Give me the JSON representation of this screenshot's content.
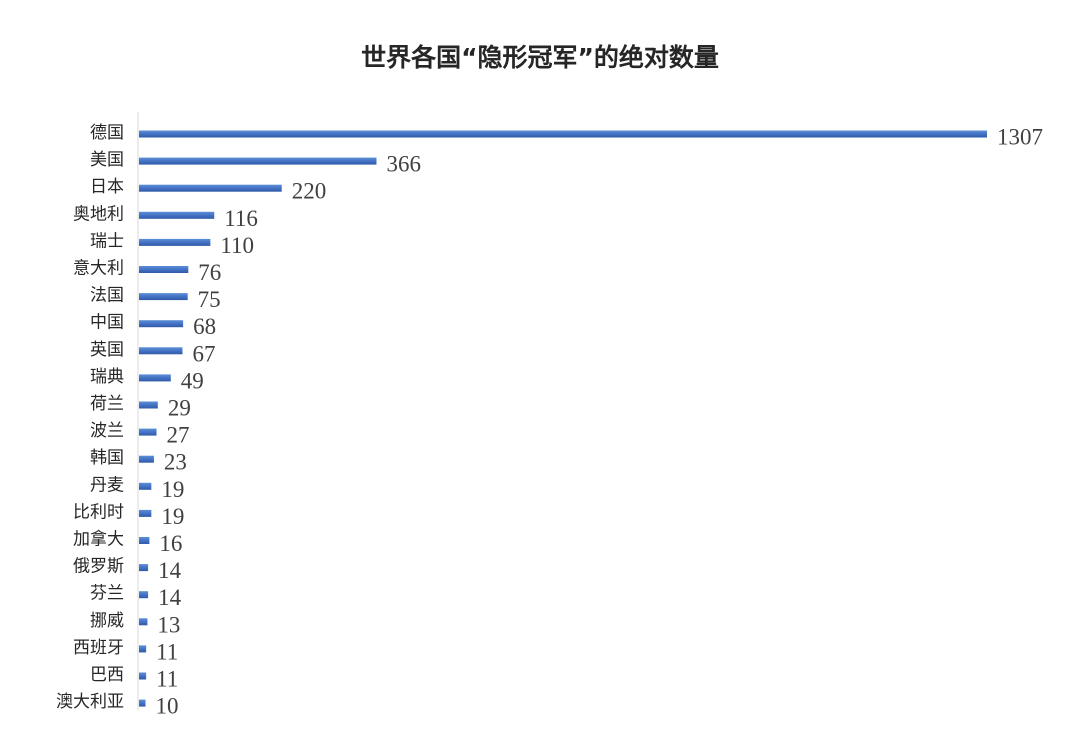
{
  "chart_data": {
    "type": "bar",
    "orientation": "horizontal",
    "title": "世界各国“隐形冠军”的绝对数量",
    "xlabel": "",
    "ylabel": "",
    "categories": [
      "德国",
      "美国",
      "日本",
      "奥地利",
      "瑞士",
      "意大利",
      "法国",
      "中国",
      "英国",
      "瑞典",
      "荷兰",
      "波兰",
      "韩国",
      "丹麦",
      "比利时",
      "加拿大",
      "俄罗斯",
      "芬兰",
      "挪威",
      "西班牙",
      "巴西",
      "澳大利亚"
    ],
    "values": [
      1307,
      366,
      220,
      116,
      110,
      76,
      75,
      68,
      67,
      49,
      29,
      27,
      23,
      19,
      19,
      16,
      14,
      14,
      13,
      11,
      11,
      10
    ],
    "xlim": [
      0,
      1307
    ],
    "grid": false,
    "legend": "none",
    "data_labels": true,
    "bar_color": "#4472c4"
  }
}
